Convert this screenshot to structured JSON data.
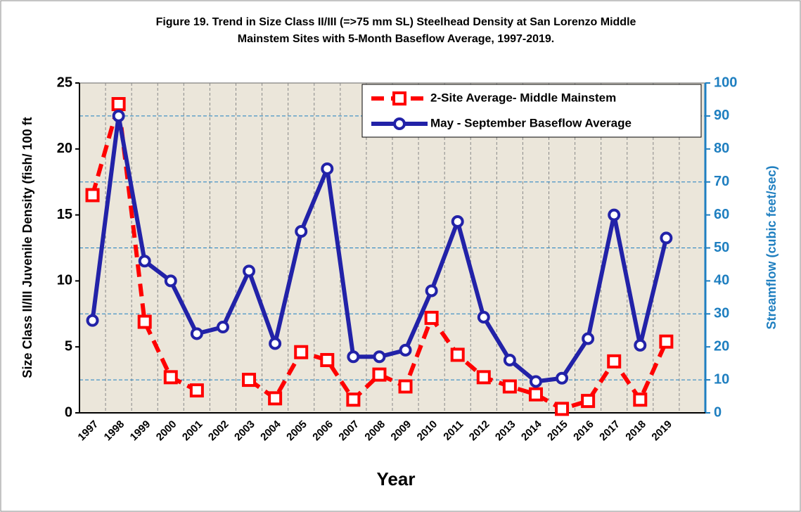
{
  "chart_data": {
    "type": "line",
    "title": [
      "Figure 19. Trend in Size Class II/III (=>75 mm SL)  Steelhead Density at San Lorenzo Middle",
      "Mainstem Sites with 5-Month Baseflow Average, 1997-2019."
    ],
    "x_label": "Year",
    "y_label": "Size Class II/III  Juvenile Density (fish/ 100 ft",
    "y2_label": "Streamflow (cubic feet/sec)",
    "categories": [
      "1997",
      "1998",
      "1999",
      "2000",
      "2001",
      "2002",
      "2003",
      "2004",
      "2005",
      "2006",
      "2007",
      "2008",
      "2009",
      "2010",
      "2011",
      "2012",
      "2013",
      "2014",
      "2015",
      "2016",
      "2017",
      "2018",
      "2019"
    ],
    "series": [
      {
        "name": "2-Site Average- Middle Mainstem",
        "color": "#ff0000",
        "axis": "y",
        "values": [
          16.5,
          23.4,
          6.9,
          2.7,
          1.7,
          null,
          2.5,
          1.1,
          4.6,
          4.0,
          1.0,
          2.9,
          2.0,
          7.2,
          4.4,
          2.7,
          2.0,
          1.4,
          0.3,
          0.9,
          3.9,
          1.0,
          5.4
        ]
      },
      {
        "name": "May - September  Baseflow Average",
        "color": "#2222a8",
        "axis": "y2",
        "values": [
          28,
          90,
          46,
          40,
          24,
          26,
          43,
          21,
          55,
          74,
          17,
          17,
          19,
          37,
          58,
          29,
          16,
          9.5,
          10.5,
          22.5,
          60,
          20.5,
          53
        ]
      }
    ],
    "ylim": [
      0,
      25
    ],
    "yticks": [
      0,
      5,
      10,
      15,
      20,
      25
    ],
    "y2lim": [
      0,
      100
    ],
    "y2ticks": [
      0,
      10,
      20,
      30,
      40,
      50,
      60,
      70,
      80,
      90,
      100
    ],
    "grid": true,
    "legend": "top-right"
  }
}
